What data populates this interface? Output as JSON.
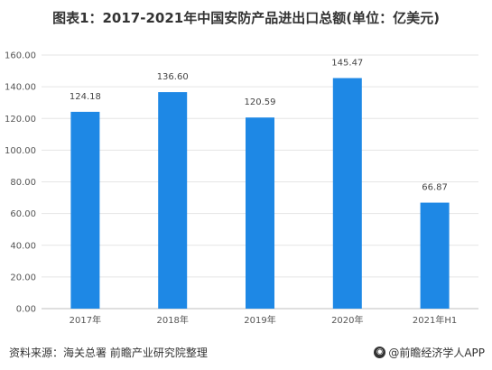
{
  "title": "图表1：2017-2021年中国安防产品进出口总额(单位：亿美元)",
  "source": "资料来源：海关总署 前瞻产业研究院整理",
  "brand": "@前瞻经济学人APP",
  "colors": {
    "bar": "#1e88e5",
    "grid": "#e5e5e5",
    "axis": "#bfbfbf"
  },
  "chart_data": {
    "type": "bar",
    "title": "图表1：2017-2021年中国安防产品进出口总额(单位：亿美元)",
    "xlabel": "",
    "ylabel": "",
    "categories": [
      "2017年",
      "2018年",
      "2019年",
      "2020年",
      "2021年H1"
    ],
    "values": [
      124.18,
      136.6,
      120.59,
      145.47,
      66.87
    ],
    "value_labels": [
      "124.18",
      "136.60",
      "120.59",
      "145.47",
      "66.87"
    ],
    "ylim": [
      0,
      160
    ],
    "yticks": [
      "0.00",
      "20.00",
      "40.00",
      "60.00",
      "80.00",
      "100.00",
      "120.00",
      "140.00",
      "160.00"
    ],
    "grid": true,
    "legend": "none"
  }
}
